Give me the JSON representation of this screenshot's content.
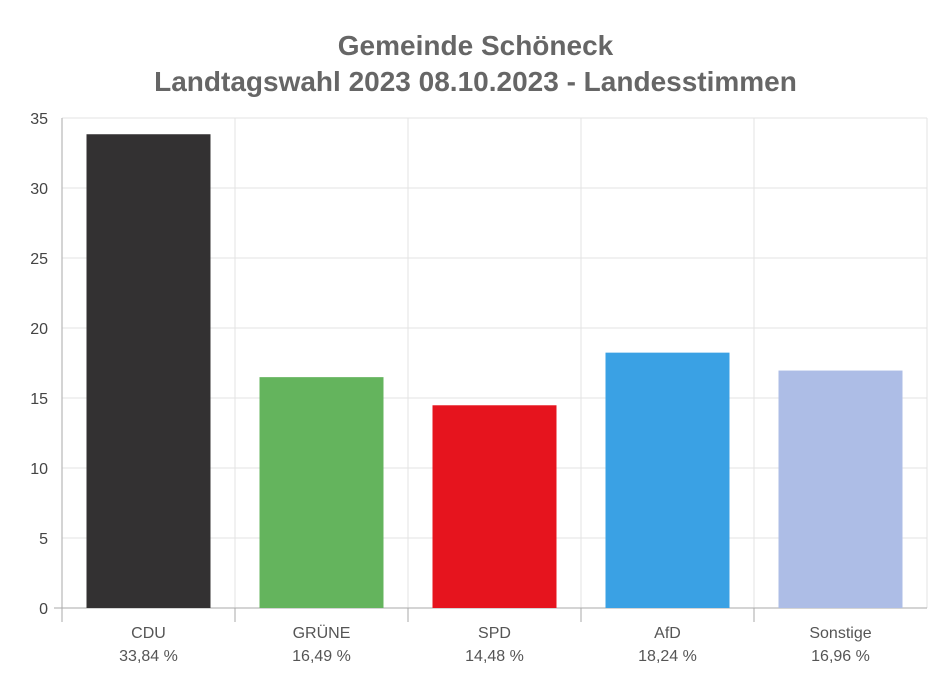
{
  "chart_data": {
    "type": "bar",
    "title": "Gemeinde Schöneck",
    "subtitle": "Landtagswahl 2023 08.10.2023  - Landesstimmen",
    "categories": [
      "CDU",
      "GRÜNE",
      "SPD",
      "AfD",
      "Sonstige"
    ],
    "value_labels": [
      "33,84 %",
      "16,49 %",
      "14,48 %",
      "18,24 %",
      "16,96 %"
    ],
    "values": [
      33.84,
      16.49,
      14.48,
      18.24,
      16.96
    ],
    "colors": [
      "#333132",
      "#64b45d",
      "#e6141e",
      "#3aa1e4",
      "#adbde6"
    ],
    "ylim": [
      0,
      35
    ],
    "yticks": [
      0,
      5,
      10,
      15,
      20,
      25,
      30,
      35
    ],
    "grid": true,
    "legend": "none"
  }
}
